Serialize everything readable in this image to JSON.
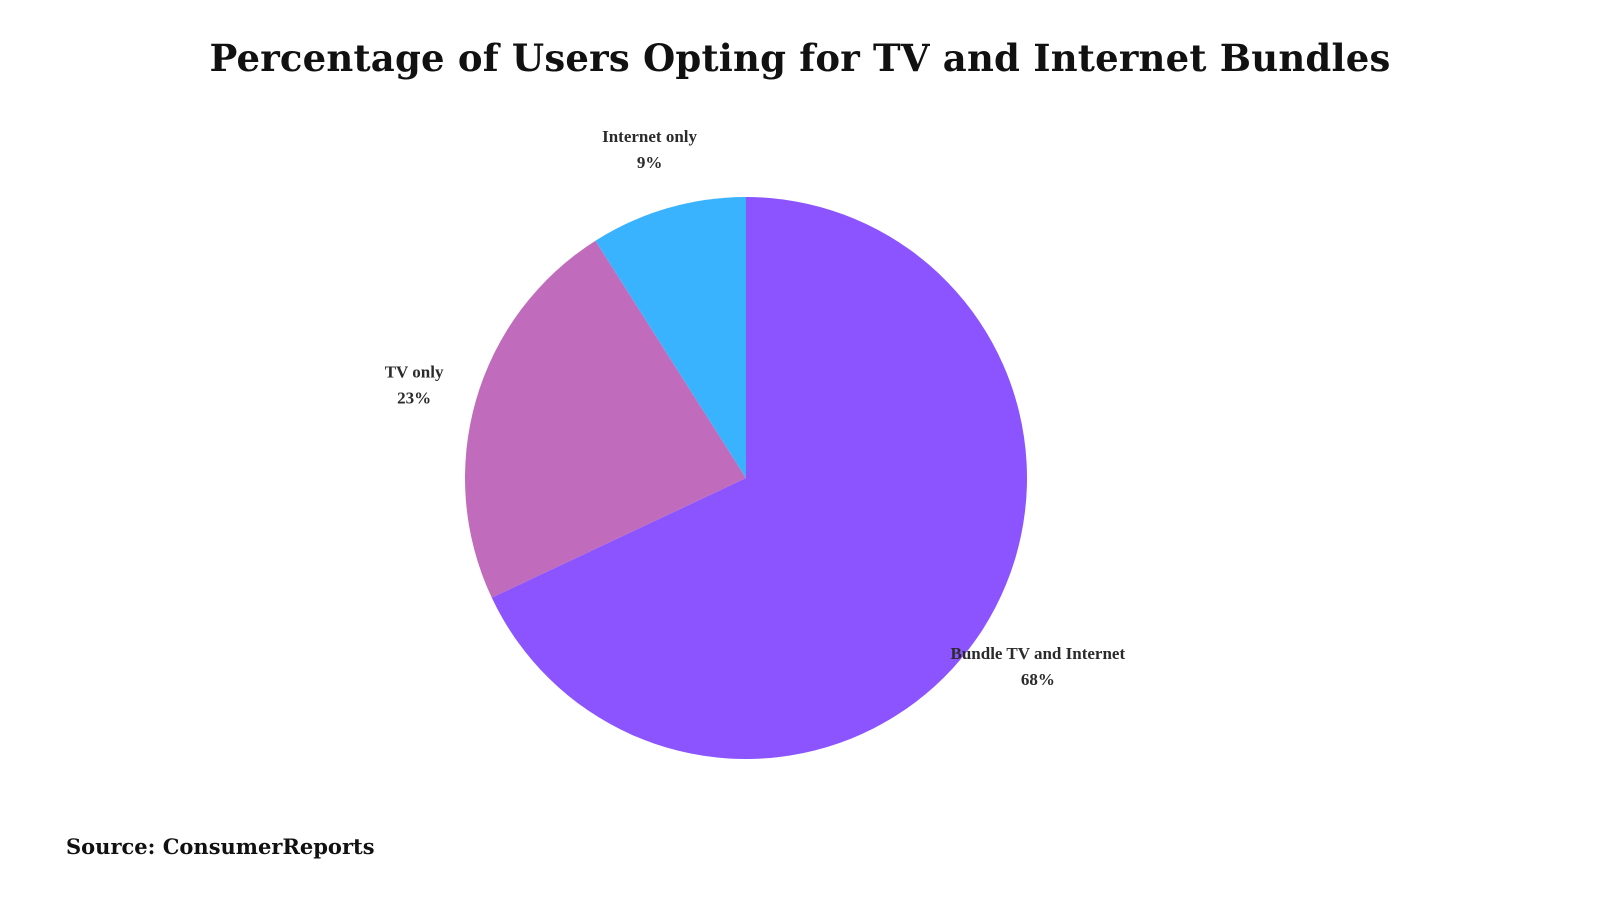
{
  "chart_data": {
    "type": "pie",
    "title": "Percentage of Users Opting for TV and Internet Bundles",
    "slices": [
      {
        "label": "Bundle TV and Internet",
        "value": 68,
        "display": "68%",
        "color": "#8b54ff"
      },
      {
        "label": "TV only",
        "value": 23,
        "display": "23%",
        "color": "#c06bbb"
      },
      {
        "label": "Internet only",
        "value": 9,
        "display": "9%",
        "color": "#3ab3ff"
      }
    ],
    "legend": "none"
  },
  "source": "Source: ConsumerReports"
}
